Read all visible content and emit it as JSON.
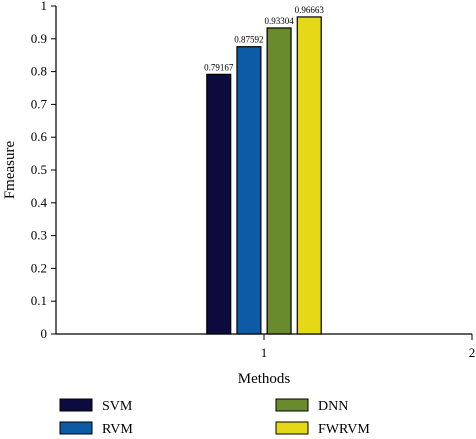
{
  "chart_data": {
    "type": "bar",
    "title": "",
    "xlabel": "Methods",
    "ylabel": "Fmeasure",
    "ylim": [
      0,
      1
    ],
    "xlim": [
      0,
      2
    ],
    "x_ticks": [
      "1",
      "2"
    ],
    "y_ticks": [
      "0",
      "0.1",
      "0.2",
      "0.3",
      "0.4",
      "0.5",
      "0.6",
      "0.7",
      "0.8",
      "0.9",
      "1"
    ],
    "grid": false,
    "legend_position": "bottom",
    "x": [
      1
    ],
    "series": [
      {
        "name": "SVM",
        "values": [
          0.79167
        ],
        "label": "0.79167",
        "color": "#0b0b3d"
      },
      {
        "name": "RVM",
        "values": [
          0.87592
        ],
        "label": "0.87592",
        "color": "#0d5aa7"
      },
      {
        "name": "DNN",
        "values": [
          0.93304
        ],
        "label": "0.93304",
        "color": "#6a8b2d"
      },
      {
        "name": "FWRVM",
        "values": [
          0.96663
        ],
        "label": "0.96663",
        "color": "#e5d817"
      }
    ]
  }
}
